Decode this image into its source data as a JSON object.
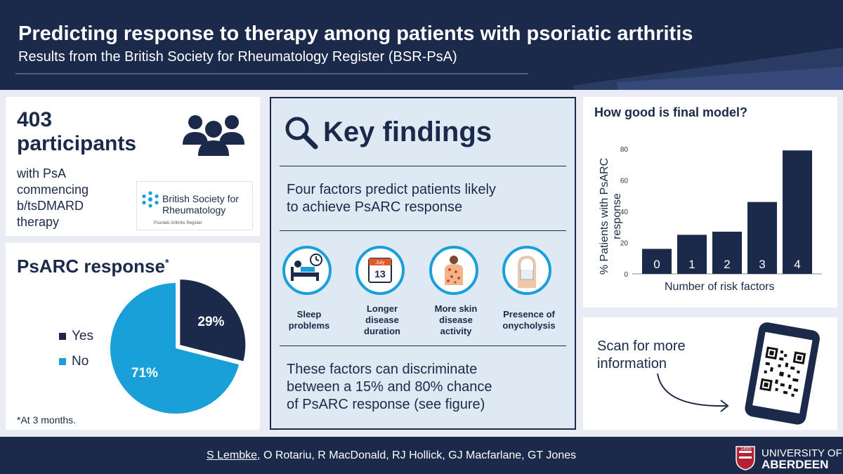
{
  "header": {
    "title": "Predicting response to therapy among patients with psoriatic arthritis",
    "subtitle": "Results from the British Society for Rheumatology Register (BSR-PsA)"
  },
  "participants": {
    "count": "403",
    "word": "participants",
    "description": [
      "with PsA",
      "commencing",
      "b/tsDMARD",
      "therapy"
    ],
    "logo_name": [
      "British Society for",
      "Rheumatology"
    ],
    "logo_sub": "Psoriatic Arthritis Register",
    "icon": "people-group-icon"
  },
  "psarc": {
    "title": "PsARC response",
    "title_mark": "*",
    "footnote": "*At 3 months.",
    "legend": [
      {
        "label": "Yes",
        "color": "#1b2a4a"
      },
      {
        "label": "No",
        "color": "#1aa0d8"
      }
    ]
  },
  "key_findings": {
    "title": "Key findings",
    "icon": "magnifier-icon",
    "intro": [
      "Four factors predict patients likely",
      "to achieve PsARC response"
    ],
    "factors": [
      {
        "label": [
          "Sleep",
          "problems"
        ],
        "icon": "bed-clock-icon"
      },
      {
        "label": [
          "Longer",
          "disease",
          "duration"
        ],
        "icon": "calendar-icon",
        "calendar_month": "July",
        "calendar_day": "13"
      },
      {
        "label": [
          "More skin",
          "disease",
          "activity"
        ],
        "icon": "skin-rash-icon"
      },
      {
        "label": [
          "Presence of",
          "onycholysis"
        ],
        "icon": "fingernail-icon"
      }
    ],
    "conclusion": [
      "These factors can discriminate",
      "between a 15% and 80% chance",
      "of PsARC response (see figure)"
    ]
  },
  "scan": {
    "text": [
      "Scan for more",
      "information"
    ],
    "icon": "phone-qr-icon"
  },
  "footer": {
    "first_author": "S Lembke",
    "other_authors": ", O Rotariu, R MacDonald, RJ Hollick, GJ Macfarlane, GT Jones",
    "uni_year": "1495",
    "uni_line1": "UNIVERSITY OF",
    "uni_line2": "ABERDEEN",
    "crest_icon": "university-crest-icon"
  },
  "chart_data": [
    {
      "type": "pie",
      "labels": [
        "Yes",
        "No"
      ],
      "values": [
        29,
        71
      ],
      "value_labels": [
        "29%",
        "71%"
      ],
      "colors": [
        "#1b2a4a",
        "#1aa0d8"
      ],
      "title": "PsARC response",
      "legend": "left"
    },
    {
      "type": "bar",
      "title": "How good is final model?",
      "categories": [
        "0",
        "1",
        "2",
        "3",
        "4"
      ],
      "values": [
        16,
        25,
        27,
        46,
        79
      ],
      "xlabel": "Number of risk factors",
      "ylabel": "% Patients with PsARC response",
      "ylim": [
        0,
        80
      ],
      "yticks": [
        "0",
        "20",
        "40",
        "60",
        "80"
      ],
      "color": "#1b2a4a",
      "grid": false,
      "category_labels_inside_bars": true
    }
  ]
}
